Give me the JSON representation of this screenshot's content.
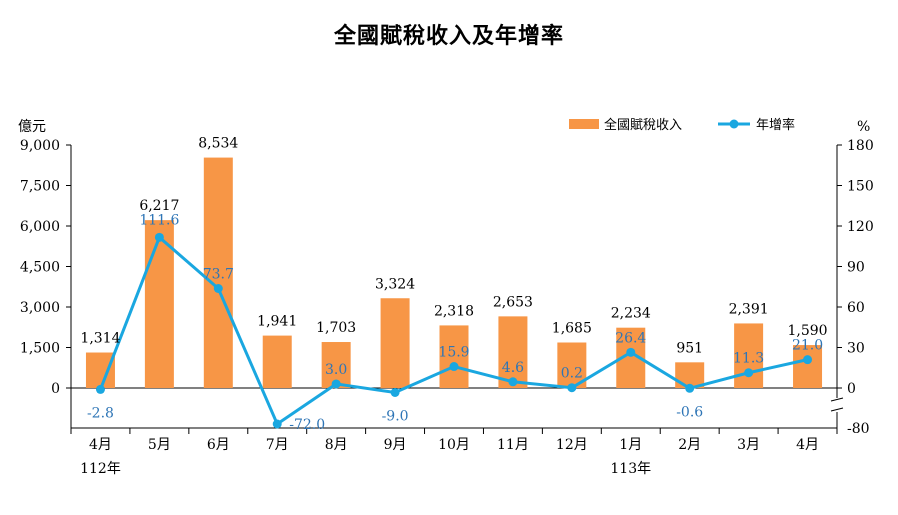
{
  "chart_data": {
    "type": "bar",
    "title": "全國賦稅收入及年增率",
    "left_unit": "億元",
    "right_unit": "%",
    "categories": [
      "4月",
      "5月",
      "6月",
      "7月",
      "8月",
      "9月",
      "10月",
      "11月",
      "12月",
      "1月",
      "2月",
      "3月",
      "4月"
    ],
    "year_labels": [
      {
        "index": 0,
        "text": "112年"
      },
      {
        "index": 9,
        "text": "113年"
      }
    ],
    "series": [
      {
        "name": "全國賦稅收入",
        "type": "bar",
        "axis": "left",
        "color": "#f79646",
        "values": [
          1314,
          6217,
          8534,
          1941,
          1703,
          3324,
          2318,
          2653,
          1685,
          2234,
          951,
          2391,
          1590
        ],
        "labels": [
          "1,314",
          "6,217",
          "8,534",
          "1,941",
          "1,703",
          "3,324",
          "2,318",
          "2,653",
          "1,685",
          "2,234",
          "951",
          "2,391",
          "1,590"
        ]
      },
      {
        "name": "年增率",
        "type": "line",
        "axis": "right",
        "color": "#1aa7e0",
        "values": [
          -2.8,
          111.6,
          73.7,
          -72.0,
          3.0,
          -9.0,
          15.9,
          4.6,
          0.2,
          26.4,
          -0.6,
          11.3,
          21.0
        ],
        "labels": [
          "-2.8",
          "111.6",
          "73.7",
          "-72.0",
          "3.0",
          "-9.0",
          "15.9",
          "4.6",
          "0.2",
          "26.4",
          "-0.6",
          "11.3",
          "21.0"
        ]
      }
    ],
    "y_left": {
      "ylim": [
        0,
        9000
      ],
      "ticks": [
        0,
        1500,
        3000,
        4500,
        6000,
        7500,
        9000
      ],
      "tick_labels": [
        "0",
        "1,500",
        "3,000",
        "4,500",
        "6,000",
        "7,500",
        "9,000"
      ]
    },
    "y_right": {
      "ylim": [
        0,
        180
      ],
      "broken_to": -80,
      "ticks": [
        0,
        30,
        60,
        90,
        120,
        150,
        180
      ],
      "tick_labels": [
        "0",
        "30",
        "60",
        "90",
        "120",
        "150",
        "180"
      ],
      "bottom_label": "-80"
    },
    "legend_position": "top-right",
    "grid": false
  }
}
